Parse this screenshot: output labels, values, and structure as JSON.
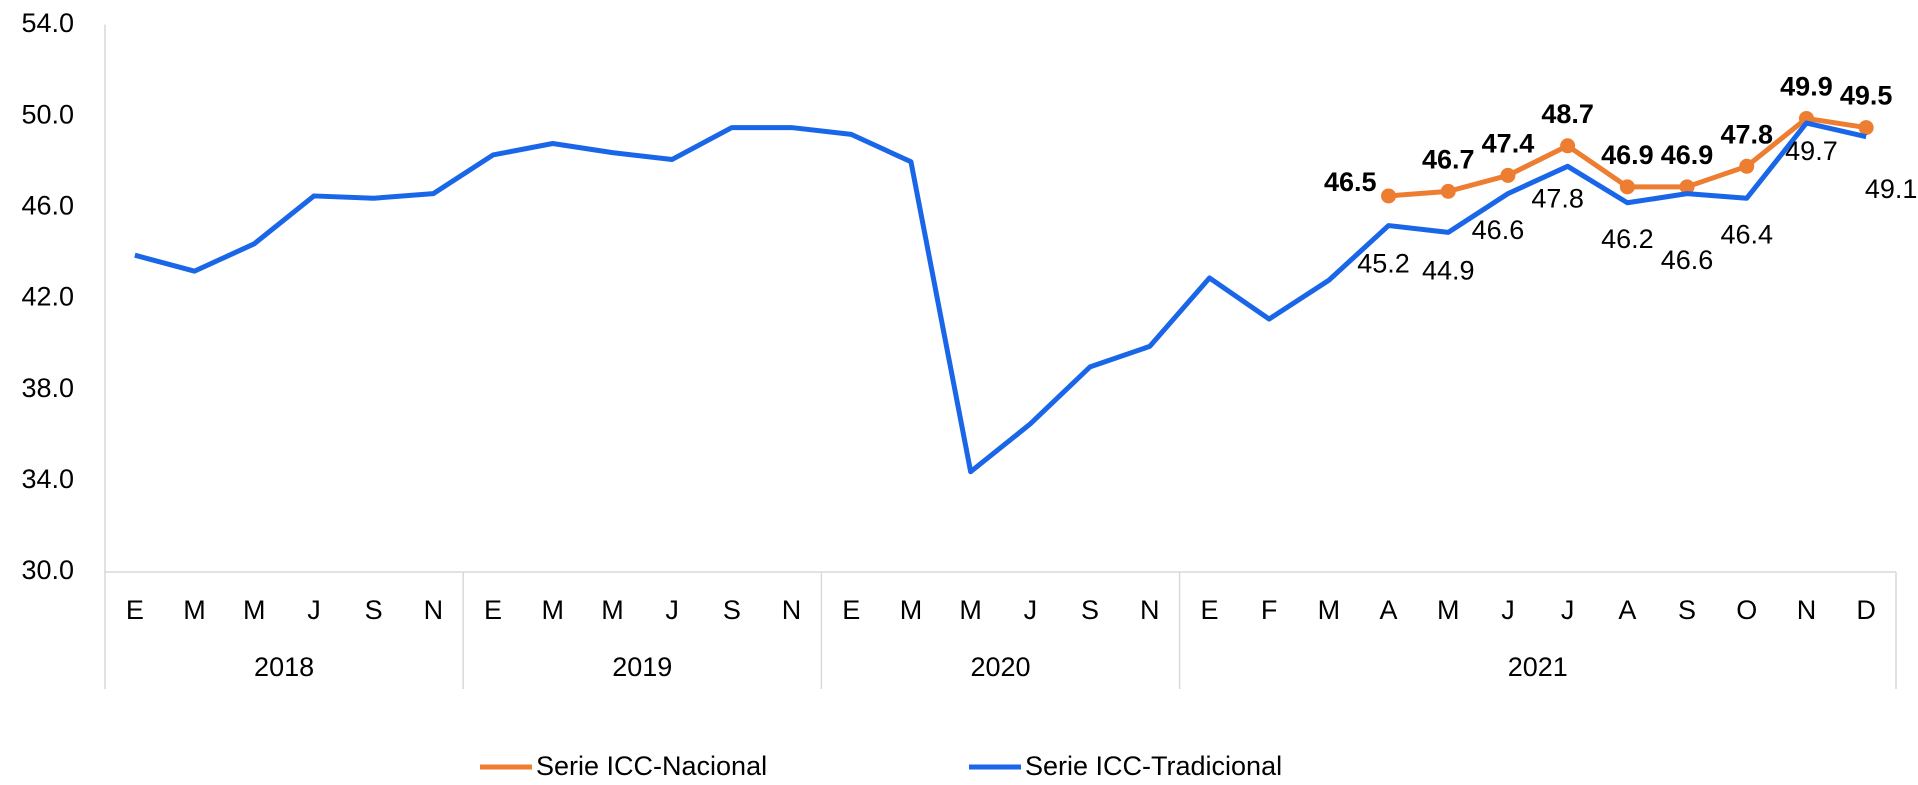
{
  "chart_data": {
    "type": "line",
    "categories": [
      "E",
      "M",
      "M",
      "J",
      "S",
      "N",
      "E",
      "M",
      "M",
      "J",
      "S",
      "N",
      "E",
      "M",
      "M",
      "J",
      "S",
      "N",
      "E",
      "F",
      "M",
      "A",
      "M",
      "J",
      "J",
      "A",
      "S",
      "O",
      "N",
      "D"
    ],
    "groups": [
      {
        "name": "2018",
        "count": 6
      },
      {
        "name": "2019",
        "count": 6
      },
      {
        "name": "2020",
        "count": 6
      },
      {
        "name": "2021",
        "count": 12
      }
    ],
    "series": [
      {
        "name": "Serie ICC-Nacional",
        "color": "#ed7d31",
        "markers": true,
        "values": [
          null,
          null,
          null,
          null,
          null,
          null,
          null,
          null,
          null,
          null,
          null,
          null,
          null,
          null,
          null,
          null,
          null,
          null,
          null,
          null,
          null,
          46.5,
          46.7,
          47.4,
          48.7,
          46.9,
          46.9,
          47.8,
          49.9,
          49.5
        ],
        "value_labels": [
          null,
          null,
          null,
          null,
          null,
          null,
          null,
          null,
          null,
          null,
          null,
          null,
          null,
          null,
          null,
          null,
          null,
          null,
          null,
          null,
          null,
          "46.5",
          "46.7",
          "47.4",
          "48.7",
          "46.9",
          "46.9",
          "47.8",
          "49.9",
          "49.5"
        ]
      },
      {
        "name": "Serie ICC-Tradicional",
        "color": "#1a66e8",
        "markers": false,
        "values": [
          43.9,
          43.2,
          44.4,
          46.5,
          46.4,
          46.6,
          48.3,
          48.8,
          48.4,
          48.1,
          49.5,
          49.5,
          49.2,
          48.0,
          34.4,
          36.5,
          39.0,
          39.9,
          42.9,
          41.1,
          42.8,
          45.2,
          44.9,
          46.6,
          47.8,
          46.2,
          46.6,
          46.4,
          49.7,
          49.1
        ],
        "value_labels": [
          null,
          null,
          null,
          null,
          null,
          null,
          null,
          null,
          null,
          null,
          null,
          null,
          null,
          null,
          null,
          null,
          null,
          null,
          null,
          null,
          null,
          "45.2",
          "44.9",
          "46.6",
          "47.8",
          "46.2",
          "46.6",
          "46.4",
          "49.7",
          "49.1"
        ]
      }
    ],
    "ylim": [
      30,
      54
    ],
    "yticks": [
      {
        "value": 30,
        "label": "30.0"
      },
      {
        "value": 34,
        "label": "34.0"
      },
      {
        "value": 38,
        "label": "38.0"
      },
      {
        "value": 42,
        "label": "42.0"
      },
      {
        "value": 46,
        "label": "46.0"
      },
      {
        "value": 50,
        "label": "50.0"
      },
      {
        "value": 54,
        "label": "54.0"
      }
    ],
    "grid": false,
    "legend": "bottom"
  }
}
